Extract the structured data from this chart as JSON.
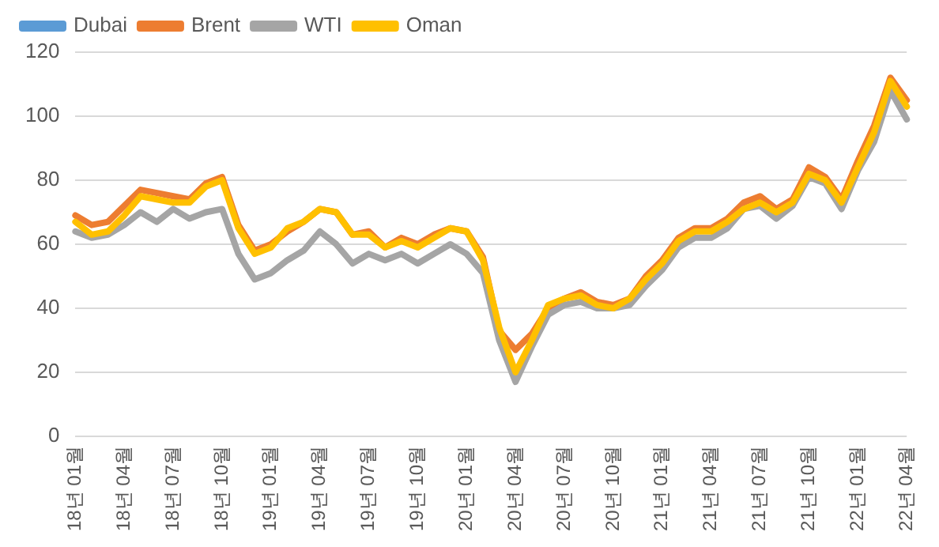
{
  "chart_data": {
    "type": "line",
    "categories": [
      "18년 01월",
      null,
      null,
      "18년 04월",
      null,
      null,
      "18년 07월",
      null,
      null,
      "18년 10월",
      null,
      null,
      "19년 01월",
      null,
      null,
      "19년 04월",
      null,
      null,
      "19년 07월",
      null,
      null,
      "19년 10월",
      null,
      null,
      "20년 01월",
      null,
      null,
      "20년 04월",
      null,
      null,
      "20년 07월",
      null,
      null,
      "20년 10월",
      null,
      null,
      "21년 01월",
      null,
      null,
      "21년 04월",
      null,
      null,
      "21년 07월",
      null,
      null,
      "21년 10월",
      null,
      null,
      "22년 01월",
      null,
      null,
      "22년 04월"
    ],
    "series": [
      {
        "name": "Dubai",
        "color": "#5b9bd5",
        "values": [
          null,
          null,
          null,
          null,
          null,
          null,
          null,
          null,
          null,
          null,
          null,
          null,
          null,
          null,
          null,
          null,
          null,
          null,
          null,
          null,
          null,
          null,
          null,
          null,
          null,
          null,
          null,
          null,
          null,
          null,
          null,
          null,
          null,
          null,
          null,
          null,
          null,
          null,
          null,
          null,
          null,
          null,
          null,
          null,
          null,
          null,
          null,
          null,
          null,
          null,
          null,
          null
        ]
      },
      {
        "name": "Brent",
        "color": "#ed7d31",
        "values": [
          69,
          66,
          67,
          72,
          77,
          76,
          75,
          74,
          79,
          81,
          66,
          58,
          60,
          64,
          67,
          71,
          70,
          63,
          64,
          59,
          62,
          60,
          63,
          65,
          64,
          56,
          33,
          27,
          32,
          40,
          43,
          45,
          42,
          41,
          43,
          50,
          55,
          62,
          65,
          65,
          68,
          73,
          75,
          71,
          74,
          84,
          81,
          74,
          86,
          97,
          112,
          105
        ]
      },
      {
        "name": "WTI",
        "color": "#a5a5a5",
        "values": [
          64,
          62,
          63,
          66,
          70,
          67,
          71,
          68,
          70,
          71,
          57,
          49,
          51,
          55,
          58,
          64,
          60,
          54,
          57,
          55,
          57,
          54,
          57,
          60,
          57,
          51,
          30,
          17,
          28,
          38,
          41,
          42,
          40,
          40,
          41,
          47,
          52,
          59,
          62,
          62,
          65,
          71,
          72,
          68,
          72,
          81,
          79,
          71,
          83,
          92,
          108,
          99
        ]
      },
      {
        "name": "Oman",
        "color": "#ffc000",
        "values": [
          67,
          63,
          64,
          69,
          75,
          74,
          73,
          73,
          78,
          80,
          65,
          57,
          59,
          65,
          67,
          71,
          70,
          63,
          63,
          59,
          61,
          59,
          62,
          65,
          64,
          55,
          34,
          20,
          30,
          41,
          43,
          44,
          41,
          40,
          43,
          49,
          54,
          61,
          64,
          64,
          67,
          71,
          73,
          70,
          73,
          82,
          80,
          73,
          84,
          95,
          111,
          103
        ]
      }
    ],
    "ylim": [
      0,
      120
    ],
    "yticks": [
      0,
      20,
      40,
      60,
      80,
      100,
      120
    ],
    "grid": "y",
    "legend": "top left",
    "marker": "none",
    "line_style": "solid"
  }
}
